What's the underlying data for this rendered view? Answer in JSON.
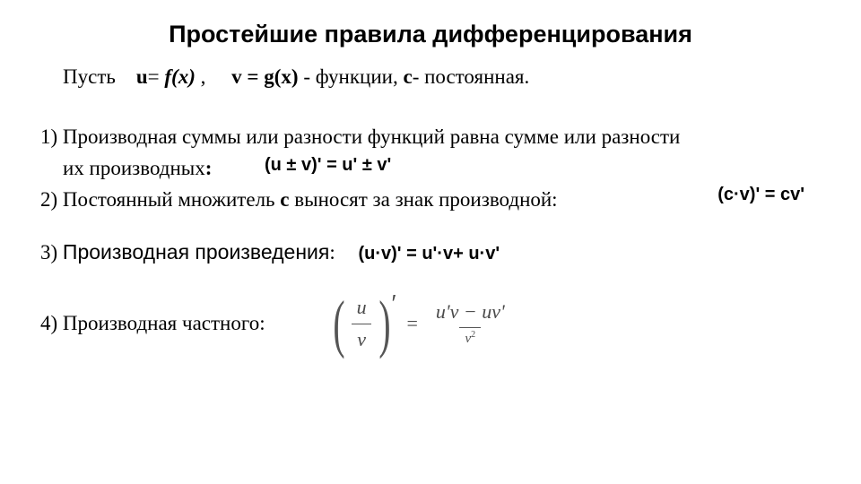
{
  "title": "Простейшие  правила дифференцирования",
  "intro": {
    "let": "Пусть",
    "u": "u",
    "eq1": "=",
    "fx": "f(x)",
    "comma": " ,",
    "v": "v = g(x)",
    "dash": " -   функции,   ",
    "c": "c",
    "const": "- постоянная."
  },
  "rule1": {
    "line1": "1) Производная суммы или разности функций равна сумме или разности",
    "line2_pre": "их производных",
    "colon": ":",
    "formula": "(u ± v)' = u' ± v'"
  },
  "rule2": {
    "text_pre": "2) Постоянный множитель ",
    "c": "c",
    "text_post": " выносят за знак производной:",
    "formula": "(c·v)' = cv'"
  },
  "rule3": {
    "prefix": "3) ",
    "label": "Производная произведения",
    "colon": ":",
    "formula": "(u·v)' = u'·v+ u·v'"
  },
  "rule4": {
    "label": "4) Производная  частного:",
    "frac_left_num": "u",
    "frac_left_den": "v",
    "numerator": "u'v − uv'",
    "denom": "v",
    "denom_exp": "2"
  },
  "style": {
    "bg": "#ffffff",
    "text": "#000000",
    "formula_color": "#4a4a4a"
  }
}
